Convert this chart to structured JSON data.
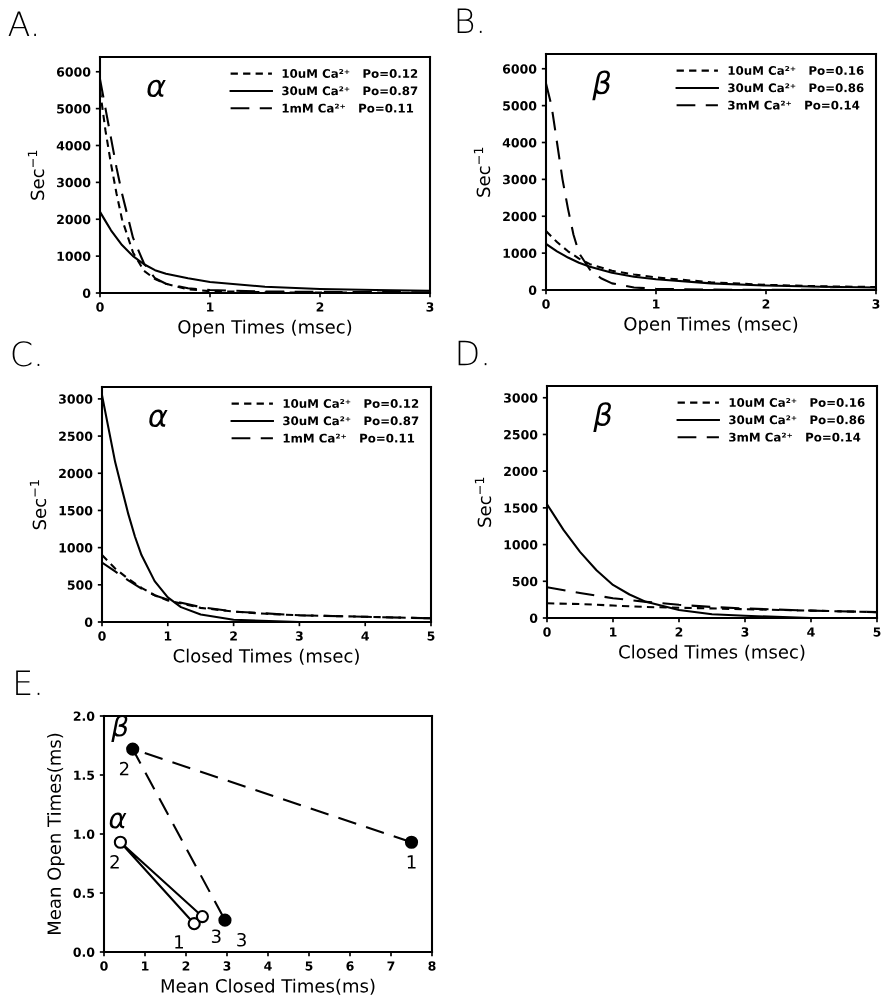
{
  "chart_data": [
    {
      "type": "line",
      "title": "A.",
      "xlabel": "Open Times (msec)",
      "ylabel": "Sec$^{−1}$",
      "annotations": [
        "α"
      ],
      "xlim": [
        0,
        3
      ],
      "ylim": [
        0,
        6400
      ],
      "xticks": [
        0,
        1,
        2,
        3
      ],
      "yticks": [
        0,
        1000,
        2000,
        3000,
        4000,
        5000,
        6000
      ],
      "legend": "top right",
      "grid": false,
      "series": [
        {
          "name": "10uM Ca²⁺   Po=0.12",
          "color": "#000000",
          "line_style": "dotted",
          "x": [
            0,
            0.05,
            0.1,
            0.15,
            0.2,
            0.3,
            0.4,
            0.5,
            0.6,
            0.8,
            1.0,
            1.5,
            2.0,
            2.5,
            3.0
          ],
          "values": [
            5500,
            4400,
            3500,
            2700,
            2000,
            1100,
            600,
            380,
            250,
            100,
            50,
            20,
            10,
            10,
            0
          ]
        },
        {
          "name": "30uM Ca²⁺   Po=0.87",
          "color": "#000000",
          "line_style": "solid",
          "x": [
            0,
            0.05,
            0.1,
            0.2,
            0.3,
            0.4,
            0.5,
            0.6,
            0.8,
            1.0,
            1.5,
            2.0,
            2.5,
            3.0
          ],
          "values": [
            2200,
            1950,
            1700,
            1300,
            1000,
            780,
            620,
            520,
            400,
            300,
            170,
            110,
            80,
            60
          ]
        },
        {
          "name": "1mM Ca²⁺   Po=0.11",
          "color": "#000000",
          "line_style": "dashed",
          "x": [
            0,
            0.05,
            0.1,
            0.15,
            0.2,
            0.3,
            0.4,
            0.5,
            0.6,
            0.8,
            1.0,
            1.5,
            2.0,
            3.0
          ],
          "values": [
            5800,
            5000,
            4200,
            3400,
            2700,
            1500,
            800,
            400,
            250,
            130,
            80,
            40,
            30,
            20
          ]
        }
      ]
    },
    {
      "type": "line",
      "title": "B.",
      "xlabel": "Open Times (msec)",
      "ylabel": "Sec$^{−1}$",
      "annotations": [
        "β"
      ],
      "xlim": [
        0,
        3
      ],
      "ylim": [
        0,
        6400
      ],
      "xticks": [
        0,
        1,
        2,
        3
      ],
      "yticks": [
        0,
        1000,
        2000,
        3000,
        4000,
        5000,
        6000
      ],
      "legend": "top right",
      "grid": false,
      "series": [
        {
          "name": "10uM Ca²⁺   Po=0.16",
          "color": "#000000",
          "line_style": "dotted",
          "x": [
            0,
            0.1,
            0.2,
            0.3,
            0.4,
            0.6,
            0.8,
            1.0,
            1.5,
            2.0,
            2.5,
            3.0
          ],
          "values": [
            1600,
            1300,
            1050,
            850,
            700,
            520,
            420,
            340,
            210,
            140,
            100,
            80
          ]
        },
        {
          "name": "30uM Ca²⁺   Po=0.86",
          "color": "#000000",
          "line_style": "solid",
          "x": [
            0,
            0.1,
            0.2,
            0.3,
            0.4,
            0.6,
            0.8,
            1.0,
            1.5,
            2.0,
            2.5,
            3.0
          ],
          "values": [
            1250,
            1050,
            880,
            740,
            630,
            470,
            360,
            290,
            180,
            120,
            90,
            70
          ]
        },
        {
          "name": "3mM Ca²⁺   Po=0.14",
          "color": "#000000",
          "line_style": "dashed",
          "x": [
            0,
            0.05,
            0.1,
            0.15,
            0.2,
            0.25,
            0.3,
            0.4,
            0.5,
            0.6,
            0.8,
            1.0,
            1.5,
            3.0
          ],
          "values": [
            5600,
            5000,
            4000,
            3000,
            2200,
            1500,
            1000,
            550,
            320,
            180,
            70,
            30,
            10,
            0
          ]
        }
      ]
    },
    {
      "type": "line",
      "title": "C.",
      "xlabel": "Closed Times (msec)",
      "ylabel": "Sec$^{−1}$",
      "annotations": [
        "α"
      ],
      "xlim": [
        0,
        5
      ],
      "ylim": [
        0,
        3160
      ],
      "xticks": [
        0,
        1,
        2,
        3,
        4,
        5
      ],
      "yticks": [
        0,
        500,
        1000,
        1500,
        2000,
        2500,
        3000
      ],
      "legend": "top right",
      "grid": false,
      "series": [
        {
          "name": "10uM Ca²⁺   Po=0.12",
          "color": "#000000",
          "line_style": "dotted",
          "x": [
            0,
            0.2,
            0.4,
            0.6,
            0.8,
            1.0,
            1.5,
            2.0,
            2.5,
            3.0,
            4.0,
            5.0
          ],
          "values": [
            900,
            720,
            580,
            460,
            360,
            290,
            190,
            140,
            110,
            90,
            70,
            50
          ]
        },
        {
          "name": "30uM Ca²⁺   Po=0.87",
          "color": "#000000",
          "line_style": "solid",
          "x": [
            0,
            0.1,
            0.2,
            0.3,
            0.4,
            0.5,
            0.6,
            0.8,
            1.0,
            1.2,
            1.5,
            2.0,
            3.0,
            5.0
          ],
          "values": [
            3050,
            2600,
            2150,
            1800,
            1450,
            1150,
            900,
            550,
            330,
            200,
            100,
            30,
            0,
            0
          ]
        },
        {
          "name": "1mM Ca²⁺   Po=0.11",
          "color": "#000000",
          "line_style": "dashed",
          "x": [
            0,
            0.2,
            0.4,
            0.6,
            0.8,
            1.0,
            1.5,
            2.0,
            3.0,
            4.0,
            5.0
          ],
          "values": [
            800,
            680,
            560,
            450,
            360,
            300,
            200,
            140,
            90,
            70,
            50
          ]
        }
      ]
    },
    {
      "type": "line",
      "title": "D.",
      "xlabel": "Closed Times (msec)",
      "ylabel": "Sec$^{−1}$",
      "annotations": [
        "β"
      ],
      "xlim": [
        0,
        5
      ],
      "ylim": [
        0,
        3160
      ],
      "xticks": [
        0,
        1,
        2,
        3,
        4,
        5
      ],
      "yticks": [
        0,
        500,
        1000,
        1500,
        2000,
        2500,
        3000
      ],
      "legend": "top right",
      "grid": false,
      "series": [
        {
          "name": "10uM Ca²⁺   Po=0.16",
          "color": "#000000",
          "line_style": "dotted",
          "x": [
            0,
            0.5,
            1.0,
            1.5,
            2.0,
            3.0,
            4.0,
            5.0
          ],
          "values": [
            200,
            190,
            170,
            150,
            140,
            120,
            100,
            80
          ]
        },
        {
          "name": "30uM Ca²⁺   Po=0.86",
          "color": "#000000",
          "line_style": "solid",
          "x": [
            0,
            0.25,
            0.5,
            0.75,
            1.0,
            1.25,
            1.5,
            2.0,
            2.5,
            3.0,
            4.0,
            5.0
          ],
          "values": [
            1550,
            1200,
            900,
            650,
            450,
            320,
            220,
            110,
            50,
            30,
            0,
            0
          ]
        },
        {
          "name": "3mM Ca²⁺   Po=0.14",
          "color": "#000000",
          "line_style": "dashed",
          "x": [
            0,
            0.5,
            1.0,
            1.5,
            2.0,
            2.5,
            3.0,
            4.0,
            5.0
          ],
          "values": [
            420,
            340,
            270,
            220,
            180,
            150,
            130,
            100,
            80
          ]
        }
      ]
    },
    {
      "type": "line",
      "title": "E.",
      "xlabel": "Mean Closed Times(ms)",
      "ylabel": "Mean Open Times(ms)",
      "xlim": [
        0,
        8
      ],
      "ylim": [
        0,
        2
      ],
      "xticks": [
        0,
        1,
        2,
        3,
        4,
        5,
        6,
        7,
        8
      ],
      "yticks": [
        {
          "value": 0,
          "label": "0.0"
        },
        {
          "value": 0.5,
          "label": "0.5"
        },
        {
          "value": 1,
          "label": "1.0"
        },
        {
          "value": 1.5,
          "label": "1.5"
        },
        {
          "value": 2,
          "label": "2.0"
        }
      ],
      "grid": false,
      "annotations": [
        {
          "text": "β",
          "x": 0.7,
          "y": 1.72
        },
        {
          "text": "α",
          "x": 0.4,
          "y": 0.93
        },
        {
          "text": "1",
          "x": 7.5,
          "y": 0.93
        },
        {
          "text": "2",
          "x": 0.7,
          "y": 1.72
        },
        {
          "text": "3",
          "x": 2.95,
          "y": 0.27
        },
        {
          "text": "1",
          "x": 2.2,
          "y": 0.24
        },
        {
          "text": "2",
          "x": 0.4,
          "y": 0.93
        },
        {
          "text": "3",
          "x": 2.4,
          "y": 0.3
        }
      ],
      "series": [
        {
          "color": "#000000",
          "line_style": "dashed",
          "marker": "circle",
          "colors": [
            "#000000",
            "#000000",
            "#000000"
          ],
          "x": [
            7.5,
            0.7,
            2.95
          ],
          "values": [
            0.93,
            1.72,
            0.27
          ]
        },
        {
          "color": "#000000",
          "line_style": "solid",
          "marker": "circle",
          "colors": [
            "#ffffff",
            "#ffffff",
            "#ffffff"
          ],
          "x": [
            2.2,
            0.4,
            2.4
          ],
          "values": [
            0.24,
            0.93,
            0.3
          ]
        }
      ]
    }
  ]
}
